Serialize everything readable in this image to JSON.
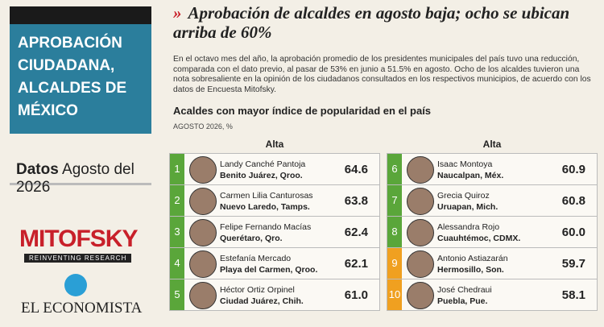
{
  "sidebar": {
    "title": "APROBACIÓN CIUDADANA, ALCALDES DE MÉXICO",
    "datos_label": "Datos",
    "datos_date": "Agosto del 2026",
    "logo1": "MITOFSKY",
    "logo1_tagline": "REINVENTING RESEARCH",
    "logo2": "EL ECONOMISTA"
  },
  "header": {
    "title": "Aprobación de alcaldes en agosto baja; ocho se ubican arriba de 60%",
    "body": "En el octavo mes del año, la aprobación promedio de los presidentes municipales del país tuvo una reducción, comparada con el dato previo, al pasar de 53% en junio a 51.5% en agosto. Ocho de los alcaldes tuvieron una nota sobresaliente en la opinión de los ciudadanos consultados en los respectivos municipios, de acuerdo con los datos de Encuesta Mitofsky."
  },
  "table": {
    "title": "Acaldes con mayor índice de popularidad en el país",
    "subtitle": "AGOSTO 2026, %",
    "columns": [
      {
        "heading": "Alta",
        "rows": [
          {
            "rank": "1",
            "name": "Landy Canché Pantoja",
            "place": "Benito Juárez, Qroo.",
            "value": "64.6",
            "color": "#5aa63a"
          },
          {
            "rank": "2",
            "name": "Carmen Lilia Canturosas",
            "place": "Nuevo Laredo, Tamps.",
            "value": "63.8",
            "color": "#5aa63a"
          },
          {
            "rank": "3",
            "name": "Felipe Fernando Macías",
            "place": "Querétaro, Qro.",
            "value": "62.4",
            "color": "#5aa63a"
          },
          {
            "rank": "4",
            "name": "Estefanía Mercado",
            "place": "Playa del Carmen, Qroo.",
            "value": "62.1",
            "color": "#5aa63a"
          },
          {
            "rank": "5",
            "name": "Héctor Ortiz Orpinel",
            "place": "Ciudad Juárez, Chih.",
            "value": "61.0",
            "color": "#5aa63a"
          }
        ]
      },
      {
        "heading": "Alta",
        "rows": [
          {
            "rank": "6",
            "name": "Isaac Montoya",
            "place": "Naucalpan, Méx.",
            "value": "60.9",
            "color": "#5aa63a"
          },
          {
            "rank": "7",
            "name": "Grecia Quiroz",
            "place": "Uruapan, Mich.",
            "value": "60.8",
            "color": "#5aa63a"
          },
          {
            "rank": "8",
            "name": "Alessandra Rojo",
            "place": "Cuauhtémoc, CDMX.",
            "value": "60.0",
            "color": "#5aa63a"
          },
          {
            "rank": "9",
            "name": "Antonio Astiazarán",
            "place": "Hermosillo, Son.",
            "value": "59.7",
            "color": "#f0a020"
          },
          {
            "rank": "10",
            "name": "José Chedraui",
            "place": "Puebla, Pue.",
            "value": "58.1",
            "color": "#f0a020"
          }
        ]
      }
    ]
  }
}
